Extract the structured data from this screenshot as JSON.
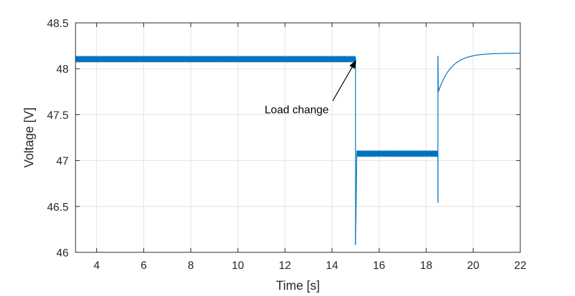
{
  "chart_data": {
    "type": "line",
    "title": "",
    "xlabel": "Time [s]",
    "ylabel": "Voltage [V]",
    "xlim": [
      3.1,
      22
    ],
    "ylim": [
      46,
      48.5
    ],
    "xticks": [
      4,
      6,
      8,
      10,
      12,
      14,
      16,
      18,
      20,
      22
    ],
    "yticks": [
      46,
      46.5,
      47,
      47.5,
      48,
      48.5
    ],
    "xtick_labels": [
      "4",
      "6",
      "8",
      "10",
      "12",
      "14",
      "16",
      "18",
      "20",
      "22"
    ],
    "ytick_labels": [
      "46",
      "46.5",
      "47",
      "47.5",
      "48",
      "48.5"
    ],
    "grid": true,
    "series": [
      {
        "color": "#0072bd",
        "segments": [
          {
            "kind": "noisy-band",
            "x": [
              3.1,
              15.0
            ],
            "y_low": 48.07,
            "y_high": 48.14
          },
          {
            "kind": "line",
            "x": [
              15.0,
              15.0
            ],
            "y": [
              48.12,
              46.08
            ]
          },
          {
            "kind": "line",
            "x": [
              15.0,
              15.05
            ],
            "y": [
              46.08,
              47.08
            ]
          },
          {
            "kind": "noisy-band",
            "x": [
              15.05,
              18.5
            ],
            "y_low": 47.04,
            "y_high": 47.11
          },
          {
            "kind": "line",
            "x": [
              18.5,
              18.5
            ],
            "y": [
              47.06,
              46.54
            ]
          },
          {
            "kind": "line",
            "x": [
              18.5,
              18.5
            ],
            "y": [
              46.54,
              48.14
            ]
          },
          {
            "kind": "line",
            "x": [
              18.5,
              18.52
            ],
            "y": [
              48.14,
              47.75
            ]
          },
          {
            "kind": "exp-recovery",
            "x": [
              18.52,
              22.0
            ],
            "y_start": 47.75,
            "y_final": 48.17,
            "tau": 0.55
          }
        ]
      }
    ],
    "annotations": [
      {
        "text": "Load change",
        "x": 12.5,
        "y": 47.56,
        "arrow_to": [
          15.0,
          48.11
        ]
      }
    ]
  }
}
